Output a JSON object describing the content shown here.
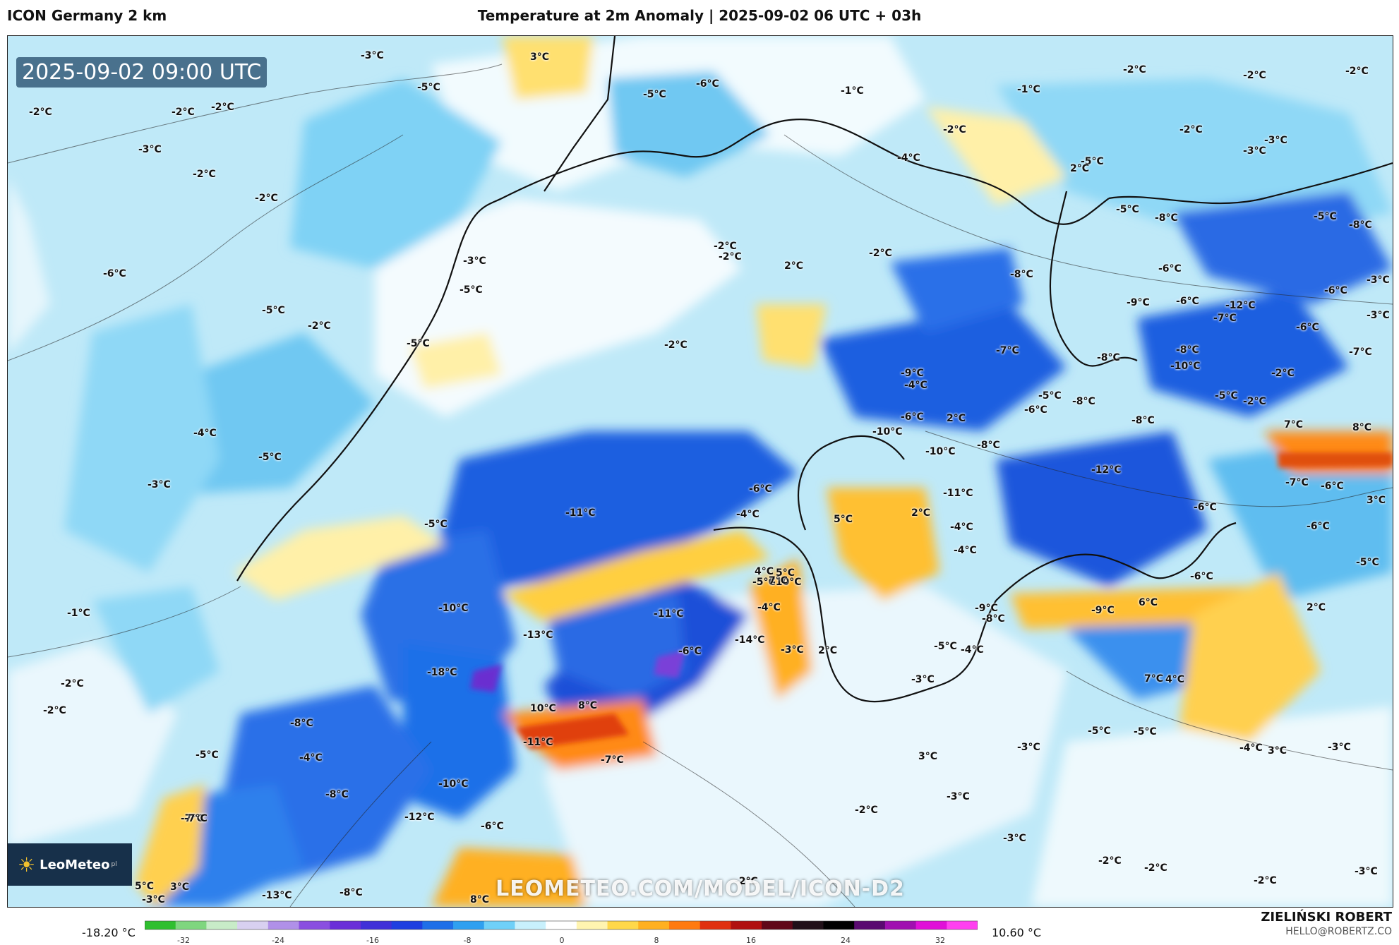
{
  "header": {
    "model": "ICON Germany 2 km",
    "title": "Temperature at 2m Anomaly | 2025-09-02 06 UTC + 03h"
  },
  "map": {
    "timestamp": "2025-09-02 09:00 UTC",
    "watermark": "LEOMETEO.COM/MODEL/ICON-D2",
    "logo": {
      "text": "LeoMeteo",
      "suffix": "pl"
    },
    "labels": [
      "-3°C",
      "3°C",
      "-5°C",
      "-6°C",
      "-5°C",
      "-1°C",
      "-1°C",
      "-2°C",
      "-2°C",
      "-2°C",
      "-2°C",
      "-2°C",
      "-2°C",
      "-2°C",
      "-2°C",
      "-3°C",
      "-4°C",
      "-5°C",
      "-3°C",
      "-2°C",
      "2°C",
      "-3°C",
      "-2°C",
      "-2°C",
      "-5°C",
      "-8°C",
      "-5°C",
      "-6°C",
      "-8°C",
      "-8°C",
      "-3°C",
      "-2°C",
      "-2°C",
      "-5°C",
      "2°C",
      "-3°C",
      "-3°C",
      "-6°C",
      "-6°C",
      "-7°C",
      "-10°C",
      "-6°C",
      "-7°C",
      "-2°C",
      "-5°C",
      "-9°C",
      "-8°C",
      "-8°C",
      "-5°C",
      "-7°C",
      "-2°C",
      "-2°C",
      "-5°C",
      "-4°C",
      "-6°C",
      "-6°C",
      "-5°C",
      "-9°C",
      "-6°C",
      "-12°C",
      "-8°C",
      "-8°C",
      "-8°C",
      "7°C",
      "8°C",
      "-2°C",
      "-4°C",
      "-5°C",
      "-3°C",
      "2°C",
      "-10°C",
      "-10°C",
      "-12°C",
      "-7°C",
      "-6°C",
      "3°C",
      "-11°C",
      "-6°C",
      "5°C",
      "2°C",
      "-11°C",
      "-5°C",
      "-4°C",
      "-4°C",
      "-5°C",
      "-10°C",
      "7°C",
      "4°C",
      "5°C",
      "-6°C",
      "-6°C",
      "-5°C",
      "-1°C",
      "-10°C",
      "-11°C",
      "-4°C",
      "-4°C",
      "-8°C",
      "-9°C",
      "6°C",
      "2°C",
      "-6°C",
      "-9°C",
      "-13°C",
      "-14°C",
      "-6°C",
      "2°C",
      "-3°C",
      "-5°C",
      "-4°C",
      "7°C",
      "-2°C",
      "-18°C",
      "-5°C",
      "-4°C",
      "-2°C",
      "-8°C",
      "10°C",
      "8°C",
      "4°C",
      "-3°C",
      "-5°C",
      "-3°C",
      "-4°C",
      "-5°C",
      "-7°C",
      "-11°C",
      "-7°C",
      "3°C",
      "-3°C",
      "3°C",
      "-10°C",
      "-8°C",
      "-2°C",
      "-3°C",
      "-7°C",
      "-12°C",
      "-6°C",
      "-2°C",
      "-3°C",
      "-2°C",
      "-3°C",
      "-13°C",
      "-8°C",
      "8°C",
      "-2°C",
      "-2°C",
      "-2°C",
      "-3°C",
      "5°C",
      "3°C"
    ]
  },
  "colorbar": {
    "min_label": "-18.20 °C",
    "max_label": "10.60 °C",
    "ticks": [
      "-32",
      "-24",
      "-16",
      "-8",
      "0",
      "8",
      "16",
      "24",
      "32"
    ],
    "colors": [
      "#2fbf2f",
      "#7fd67f",
      "#c8ecc8",
      "#d8d0f0",
      "#b090e8",
      "#8a4fe0",
      "#6a2fd8",
      "#4030d8",
      "#1f3fe0",
      "#1f6fe8",
      "#2fa0f0",
      "#6fd0f8",
      "#c8f0fc",
      "#ffffff",
      "#fff4b0",
      "#ffd84a",
      "#ffb020",
      "#ff7a10",
      "#e03010",
      "#b01010",
      "#600818",
      "#201018",
      "#000000",
      "#5a0a70",
      "#a010b0",
      "#e010d8",
      "#ff40f0"
    ]
  },
  "author": {
    "name": "ZIELIŃSKI ROBERT",
    "email": "HELLO@ROBERTZ.CO"
  }
}
